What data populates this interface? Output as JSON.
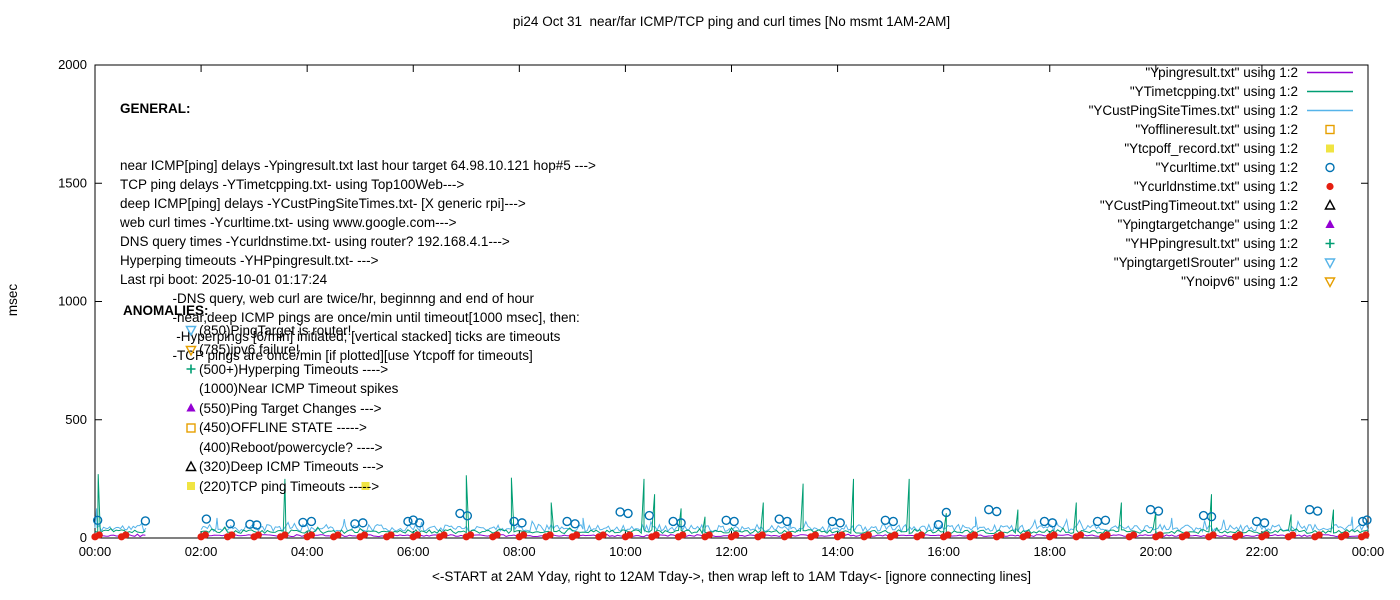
{
  "general": {
    "heading": "GENERAL:",
    "lines": [
      "near ICMP[ping] delays -Ypingresult.txt last hour target 64.98.10.121 hop#5 --->",
      "TCP ping delays -YTimetcpping.txt- using Top100Web--->",
      "deep ICMP[ping] delays -YCustPingSiteTimes.txt- [X generic rpi]--->",
      "web curl times -Ycurltime.txt- using www.google.com--->",
      "DNS query times -Ycurldnstime.txt- using router? 192.168.4.1--->",
      "Hyperping timeouts -YHPpingresult.txt- --->",
      "Last rpi boot: 2025-10-01 01:17:24",
      "              -DNS query, web curl are twice/hr, beginnng and end of hour",
      "              -near,deep ICMP pings are once/min until timeout[1000 msec], then:",
      "               -Hyperpings [6/min] initiated; [vertical stacked] ticks are timeouts",
      "              -TCP pings are once/min [if plotted][use Ytcpoff for timeouts]"
    ]
  },
  "anomalies": {
    "heading": "ANOMALIES:",
    "lines": [
      {
        "marker": "triangle-down-open",
        "color": "#56b4e9",
        "text": "(850)PingTarget is router!"
      },
      {
        "marker": "triangle-down-open",
        "color": "#e69f00",
        "text": "(785)ipv6 failure!"
      },
      {
        "marker": "plus",
        "color": "#009e73",
        "text": "(500+)Hyperping Timeouts ---->"
      },
      {
        "marker": "none",
        "color": "",
        "text": "(1000)Near ICMP Timeout spikes"
      },
      {
        "marker": "triangle-up-filled",
        "color": "#9400d3",
        "text": "(550)Ping Target Changes --->"
      },
      {
        "marker": "square-open",
        "color": "#e69f00",
        "text": "(450)OFFLINE STATE ----->"
      },
      {
        "marker": "none",
        "color": "",
        "text": "(400)Reboot/powercycle? ---->"
      },
      {
        "marker": "triangle-up-open",
        "color": "#000000",
        "text": "(320)Deep ICMP Timeouts --->"
      },
      {
        "marker": "square-filled",
        "color": "#f0e442",
        "text": "(220)TCP ping Timeouts ----->"
      }
    ]
  },
  "legend": {
    "position": "top-right",
    "items": [
      {
        "label": "\"Ypingresult.txt\" using 1:2",
        "marker": "line",
        "color": "#9400d3"
      },
      {
        "label": "\"YTimetcpping.txt\" using 1:2",
        "marker": "line",
        "color": "#009e73"
      },
      {
        "label": "\"YCustPingSiteTimes.txt\" using 1:2",
        "marker": "line",
        "color": "#56b4e9"
      },
      {
        "label": "\"Yofflineresult.txt\" using 1:2",
        "marker": "square-open",
        "color": "#e69f00"
      },
      {
        "label": "\"Ytcpoff_record.txt\" using 1:2",
        "marker": "square-filled",
        "color": "#f0e442"
      },
      {
        "label": "\"Ycurltime.txt\" using 1:2",
        "marker": "circle-open",
        "color": "#0072b2"
      },
      {
        "label": "\"Ycurldnstime.txt\" using 1:2",
        "marker": "circle-filled",
        "color": "#e51e10"
      },
      {
        "label": "\"YCustPingTimeout.txt\" using 1:2",
        "marker": "triangle-up-open",
        "color": "#000000"
      },
      {
        "label": "\"Ypingtargetchange\" using 1:2",
        "marker": "triangle-up-filled",
        "color": "#9400d3"
      },
      {
        "label": "\"YHPpingresult.txt\" using 1:2",
        "marker": "plus",
        "color": "#009e73"
      },
      {
        "label": "\"YpingtargetISrouter\" using 1:2",
        "marker": "triangle-down-open",
        "color": "#56b4e9"
      },
      {
        "label": "\"Ynoipv6\" using 1:2",
        "marker": "triangle-down-open",
        "color": "#e69f00"
      }
    ]
  },
  "chart_data": {
    "type": "line+scatter",
    "title": "pi24 Oct 31  near/far ICMP/TCP ping and curl times [No msmt 1AM-2AM]",
    "xlabel": "<-START at 2AM Yday, right to 12AM Tday->, then wrap left to 1AM Tday<- [ignore connecting lines]",
    "ylabel": "msec",
    "xlim": [
      0,
      24
    ],
    "ylim": [
      0,
      2000
    ],
    "grid": false,
    "legend_position": "top-right",
    "x_ticks": [
      {
        "h": 0,
        "label": "00:00"
      },
      {
        "h": 2,
        "label": "02:00"
      },
      {
        "h": 4,
        "label": "04:00"
      },
      {
        "h": 6,
        "label": "06:00"
      },
      {
        "h": 8,
        "label": "08:00"
      },
      {
        "h": 10,
        "label": "10:00"
      },
      {
        "h": 12,
        "label": "12:00"
      },
      {
        "h": 14,
        "label": "14:00"
      },
      {
        "h": 16,
        "label": "16:00"
      },
      {
        "h": 18,
        "label": "18:00"
      },
      {
        "h": 20,
        "label": "20:00"
      },
      {
        "h": 22,
        "label": "22:00"
      },
      {
        "h": 24,
        "label": "00:00"
      }
    ],
    "y_ticks": [
      0,
      500,
      1000,
      1500,
      2000
    ],
    "series": [
      {
        "name": "YCustPingSiteTimes.txt",
        "kind": "noise-line",
        "color": "#56b4e9",
        "baseline": 42,
        "noise": 15,
        "step": 0.04,
        "seed": 11,
        "min": 22,
        "gap": [
          1,
          2
        ],
        "spikes": [
          [
            0.03,
            125
          ],
          [
            2.3,
            85
          ],
          [
            4.7,
            80
          ],
          [
            9.2,
            85
          ],
          [
            13.1,
            80
          ],
          [
            16.6,
            90
          ],
          [
            20.3,
            85
          ],
          [
            23.7,
            90
          ]
        ]
      },
      {
        "name": "YTimetcpping.txt",
        "kind": "noise-line",
        "color": "#009e73",
        "baseline": 27,
        "noise": 8,
        "step": 0.05,
        "seed": 5,
        "min": 15,
        "gap": [
          1,
          2
        ],
        "spikes": [
          [
            0.06,
            270
          ],
          [
            3.58,
            250
          ],
          [
            7.0,
            265
          ],
          [
            7.85,
            255
          ],
          [
            8.6,
            150
          ],
          [
            10.35,
            250
          ],
          [
            10.55,
            185
          ],
          [
            11.05,
            125
          ],
          [
            11.5,
            90
          ],
          [
            12.6,
            150
          ],
          [
            13.35,
            230
          ],
          [
            14.3,
            250
          ],
          [
            15.35,
            250
          ],
          [
            16.05,
            105
          ],
          [
            17.4,
            120
          ],
          [
            18.5,
            150
          ],
          [
            19.35,
            150
          ],
          [
            20.0,
            110
          ],
          [
            21.05,
            185
          ],
          [
            22.55,
            100
          ],
          [
            23.35,
            120
          ]
        ]
      },
      {
        "name": "Ypingresult.txt",
        "kind": "noise-line",
        "color": "#9400d3",
        "baseline": 10,
        "noise": 4,
        "step": 0.05,
        "seed": 3,
        "min": 3,
        "gap": [
          1,
          2
        ],
        "spikes": []
      },
      {
        "name": "Ycurltime.txt",
        "kind": "scatter",
        "marker": "circle-open",
        "color": "#0072b2",
        "points": [
          [
            0.05,
            75
          ],
          [
            0.95,
            72
          ],
          [
            2.1,
            80
          ],
          [
            2.55,
            60
          ],
          [
            2.92,
            58
          ],
          [
            3.05,
            55
          ],
          [
            3.92,
            66
          ],
          [
            4.08,
            70
          ],
          [
            4.9,
            60
          ],
          [
            5.05,
            64
          ],
          [
            5.9,
            70
          ],
          [
            6.0,
            76
          ],
          [
            6.12,
            64
          ],
          [
            6.88,
            104
          ],
          [
            7.02,
            94
          ],
          [
            7.9,
            70
          ],
          [
            8.05,
            64
          ],
          [
            8.9,
            70
          ],
          [
            9.05,
            60
          ],
          [
            9.9,
            110
          ],
          [
            10.05,
            104
          ],
          [
            10.45,
            95
          ],
          [
            10.9,
            70
          ],
          [
            11.05,
            64
          ],
          [
            11.9,
            75
          ],
          [
            12.05,
            70
          ],
          [
            12.9,
            80
          ],
          [
            13.05,
            70
          ],
          [
            13.9,
            70
          ],
          [
            14.05,
            64
          ],
          [
            14.9,
            75
          ],
          [
            15.05,
            70
          ],
          [
            15.9,
            56
          ],
          [
            16.05,
            108
          ],
          [
            16.85,
            120
          ],
          [
            17.0,
            112
          ],
          [
            17.9,
            70
          ],
          [
            18.05,
            64
          ],
          [
            18.9,
            70
          ],
          [
            19.05,
            75
          ],
          [
            19.9,
            120
          ],
          [
            20.05,
            114
          ],
          [
            20.9,
            95
          ],
          [
            21.05,
            90
          ],
          [
            21.9,
            70
          ],
          [
            22.05,
            64
          ],
          [
            22.9,
            120
          ],
          [
            23.05,
            114
          ],
          [
            23.9,
            70
          ],
          [
            23.98,
            76
          ]
        ]
      },
      {
        "name": "Ycurldnstime.txt",
        "kind": "scatter-pattern",
        "marker": "circle-filled",
        "color": "#e51e10",
        "pattern": {
          "start": 0,
          "end": 23.6,
          "step": 0.5,
          "skip": [
            1,
            2
          ],
          "offsets": [
            0,
            0.08
          ],
          "y_values": [
            5,
            13
          ]
        },
        "extra_points": [
          [
            23.88,
            5
          ],
          [
            23.96,
            13
          ]
        ]
      },
      {
        "name": "Ytcpoff_record.txt",
        "kind": "scatter",
        "marker": "square-filled",
        "color": "#f0e442",
        "points": [
          [
            5.1,
            220
          ]
        ]
      },
      {
        "name": "Yofflineresult.txt",
        "kind": "scatter",
        "marker": "square-open",
        "color": "#e69f00",
        "points": []
      },
      {
        "name": "YCustPingTimeout.txt",
        "kind": "scatter",
        "marker": "triangle-up-open",
        "color": "#000000",
        "points": []
      },
      {
        "name": "Ypingtargetchange",
        "kind": "scatter",
        "marker": "triangle-up-filled",
        "color": "#9400d3",
        "points": []
      },
      {
        "name": "YHPpingresult.txt",
        "kind": "scatter",
        "marker": "plus",
        "color": "#009e73",
        "points": []
      },
      {
        "name": "YpingtargetISrouter",
        "kind": "scatter",
        "marker": "triangle-down-open",
        "color": "#56b4e9",
        "points": []
      },
      {
        "name": "Ynoipv6",
        "kind": "scatter",
        "marker": "triangle-down-open",
        "color": "#e69f00",
        "points": []
      }
    ]
  }
}
